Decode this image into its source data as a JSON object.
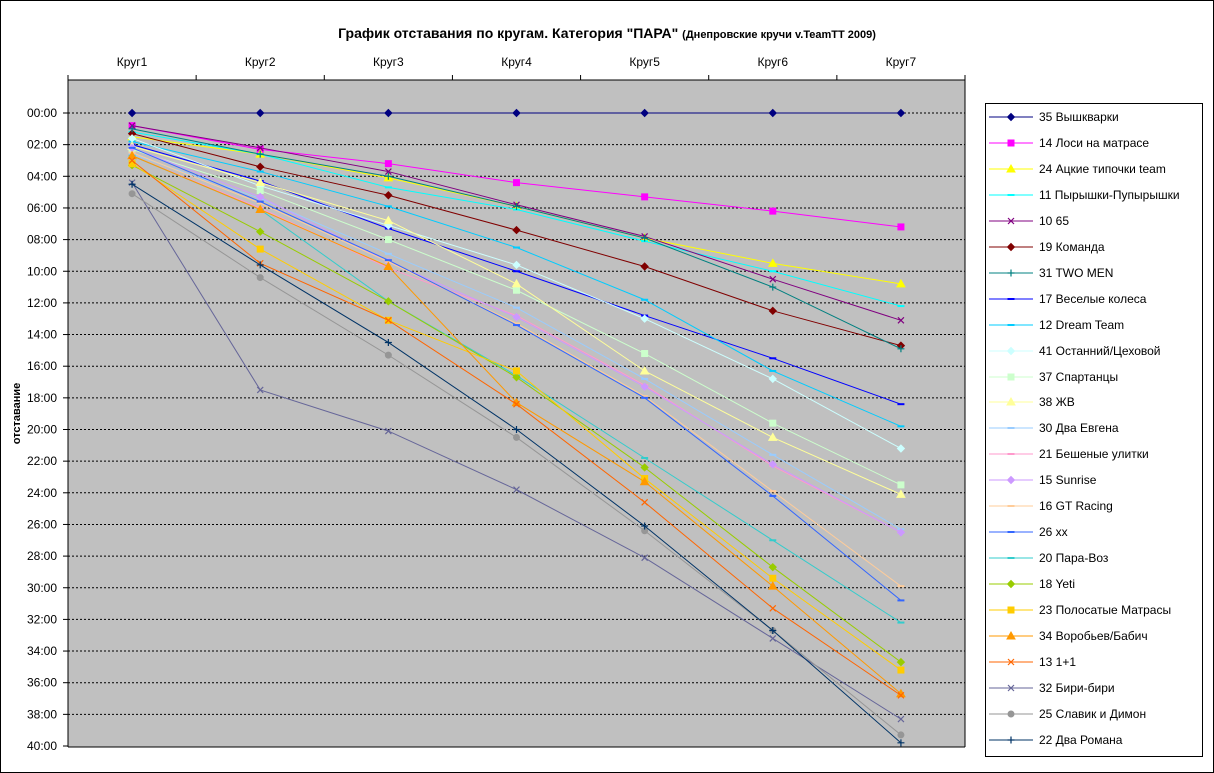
{
  "title": "График отставания по кругам. Категория \"ПАРА\"",
  "subtitle": "(Днепровские кручи v.TeamTT 2009)",
  "chart_data": {
    "type": "line",
    "xlabel": "",
    "ylabel": "отставание",
    "categories": [
      "Круг1",
      "Круг2",
      "Круг3",
      "Круг4",
      "Круг5",
      "Круг6",
      "Круг7"
    ],
    "y_unit": "minutes",
    "y_inverted": true,
    "ylim": [
      0,
      40
    ],
    "y_ticks": [
      "00:00",
      "02:00",
      "04:00",
      "06:00",
      "08:00",
      "10:00",
      "12:00",
      "14:00",
      "16:00",
      "18:00",
      "20:00",
      "22:00",
      "24:00",
      "26:00",
      "28:00",
      "30:00",
      "32:00",
      "34:00",
      "36:00",
      "38:00",
      "40:00"
    ],
    "grid": "horizontal dotted",
    "plot_background": "#c0c0c0",
    "legend_position": "right",
    "series": [
      {
        "name": "35 Вышкварки",
        "color": "#000080",
        "marker": "diamond",
        "values": [
          0,
          0,
          0,
          0,
          0,
          0,
          0
        ]
      },
      {
        "name": "14 Лоси на матрасе",
        "color": "#ff00ff",
        "marker": "square",
        "values": [
          0.8,
          2.3,
          3.2,
          4.4,
          5.3,
          6.2,
          7.2
        ]
      },
      {
        "name": "24 Ацкие типочки team",
        "color": "#ffff00",
        "marker": "triangle",
        "values": [
          1.5,
          2.6,
          4.1,
          5.9,
          7.9,
          9.5,
          10.8
        ]
      },
      {
        "name": "11 Пырышки-Пупырышки",
        "color": "#00ffff",
        "marker": "bar",
        "values": [
          1.2,
          2.6,
          4.7,
          6.1,
          8.1,
          10.0,
          12.2
        ]
      },
      {
        "name": "10 65",
        "color": "#800080",
        "marker": "x",
        "values": [
          0.8,
          2.2,
          3.7,
          5.8,
          7.8,
          10.5,
          13.1
        ]
      },
      {
        "name": "19 Команда",
        "color": "#800000",
        "marker": "diamond",
        "values": [
          1.3,
          3.4,
          5.2,
          7.4,
          9.7,
          12.5,
          14.7
        ]
      },
      {
        "name": "31 TWO MEN",
        "color": "#008080",
        "marker": "plus",
        "values": [
          1.0,
          2.6,
          4.0,
          5.9,
          7.9,
          11.0,
          14.9
        ]
      },
      {
        "name": "17 Веселые колеса",
        "color": "#0000ff",
        "marker": "bar",
        "values": [
          2.0,
          4.3,
          7.3,
          10.0,
          12.8,
          15.5,
          18.4
        ]
      },
      {
        "name": "12 Dream Team",
        "color": "#00ccff",
        "marker": "bar",
        "values": [
          1.8,
          3.7,
          5.9,
          8.5,
          11.8,
          16.3,
          19.8
        ]
      },
      {
        "name": "41 Останний/Цеховой",
        "color": "#ccffff",
        "marker": "diamond",
        "values": [
          1.6,
          4.6,
          7.1,
          9.6,
          13.0,
          16.8,
          21.2
        ]
      },
      {
        "name": "37 Спартанцы",
        "color": "#ccffcc",
        "marker": "square",
        "values": [
          2.3,
          4.9,
          8.0,
          11.2,
          15.2,
          19.6,
          23.5
        ]
      },
      {
        "name": "38 ЖВ",
        "color": "#ffff99",
        "marker": "triangle",
        "values": [
          2.1,
          4.4,
          6.8,
          10.8,
          16.3,
          20.5,
          24.1
        ]
      },
      {
        "name": "30 Два Евгена",
        "color": "#99ccff",
        "marker": "bar",
        "values": [
          2.6,
          5.4,
          8.9,
          12.3,
          16.8,
          21.6,
          26.3
        ]
      },
      {
        "name": "21 Бешеные улитки",
        "color": "#ff99cc",
        "marker": "bar",
        "values": [
          2.7,
          6.0,
          9.8,
          12.8,
          17.2,
          22.3,
          26.5
        ]
      },
      {
        "name": "15 Sunrise",
        "color": "#cc99ff",
        "marker": "diamond",
        "values": [
          2.2,
          5.3,
          9.4,
          12.9,
          17.3,
          22.2,
          26.5
        ]
      },
      {
        "name": "16 GT Racing",
        "color": "#ffcc99",
        "marker": "bar",
        "values": [
          2.5,
          5.7,
          9.4,
          13.3,
          17.9,
          23.9,
          29.9
        ]
      },
      {
        "name": "26 xx",
        "color": "#3366ff",
        "marker": "bar",
        "values": [
          2.2,
          5.6,
          9.3,
          13.4,
          18.0,
          24.2,
          30.8
        ]
      },
      {
        "name": "20 Пара-Воз",
        "color": "#33cccc",
        "marker": "bar",
        "values": [
          2.7,
          6.1,
          11.9,
          16.6,
          21.8,
          27.0,
          32.2
        ]
      },
      {
        "name": "18 Yeti",
        "color": "#99cc00",
        "marker": "diamond",
        "values": [
          3.3,
          7.5,
          11.9,
          16.7,
          22.4,
          28.7,
          34.7
        ]
      },
      {
        "name": "23 Полосатые Матрасы",
        "color": "#ffcc00",
        "marker": "square",
        "values": [
          3.2,
          8.6,
          13.1,
          16.3,
          23.1,
          29.4,
          35.2
        ]
      },
      {
        "name": "34 Воробьев/Бабич",
        "color": "#ff9900",
        "marker": "triangle",
        "values": [
          2.7,
          6.1,
          9.7,
          18.3,
          23.3,
          29.9,
          36.7
        ]
      },
      {
        "name": "13 1+1",
        "color": "#ff6600",
        "marker": "x",
        "values": [
          3.0,
          9.5,
          13.1,
          18.4,
          24.6,
          31.3,
          36.8
        ]
      },
      {
        "name": "32 Бири-бири",
        "color": "#666699",
        "marker": "x",
        "values": [
          4.4,
          17.5,
          20.1,
          23.8,
          28.1,
          33.2,
          38.3
        ]
      },
      {
        "name": "25 Славик и Димон",
        "color": "#969696",
        "marker": "circle",
        "values": [
          5.1,
          10.4,
          15.3,
          20.5,
          26.4,
          32.7,
          39.3
        ]
      },
      {
        "name": "22 Два Романа",
        "color": "#003366",
        "marker": "plus",
        "values": [
          4.5,
          9.6,
          14.5,
          20.0,
          26.1,
          32.7,
          39.8
        ]
      }
    ]
  }
}
